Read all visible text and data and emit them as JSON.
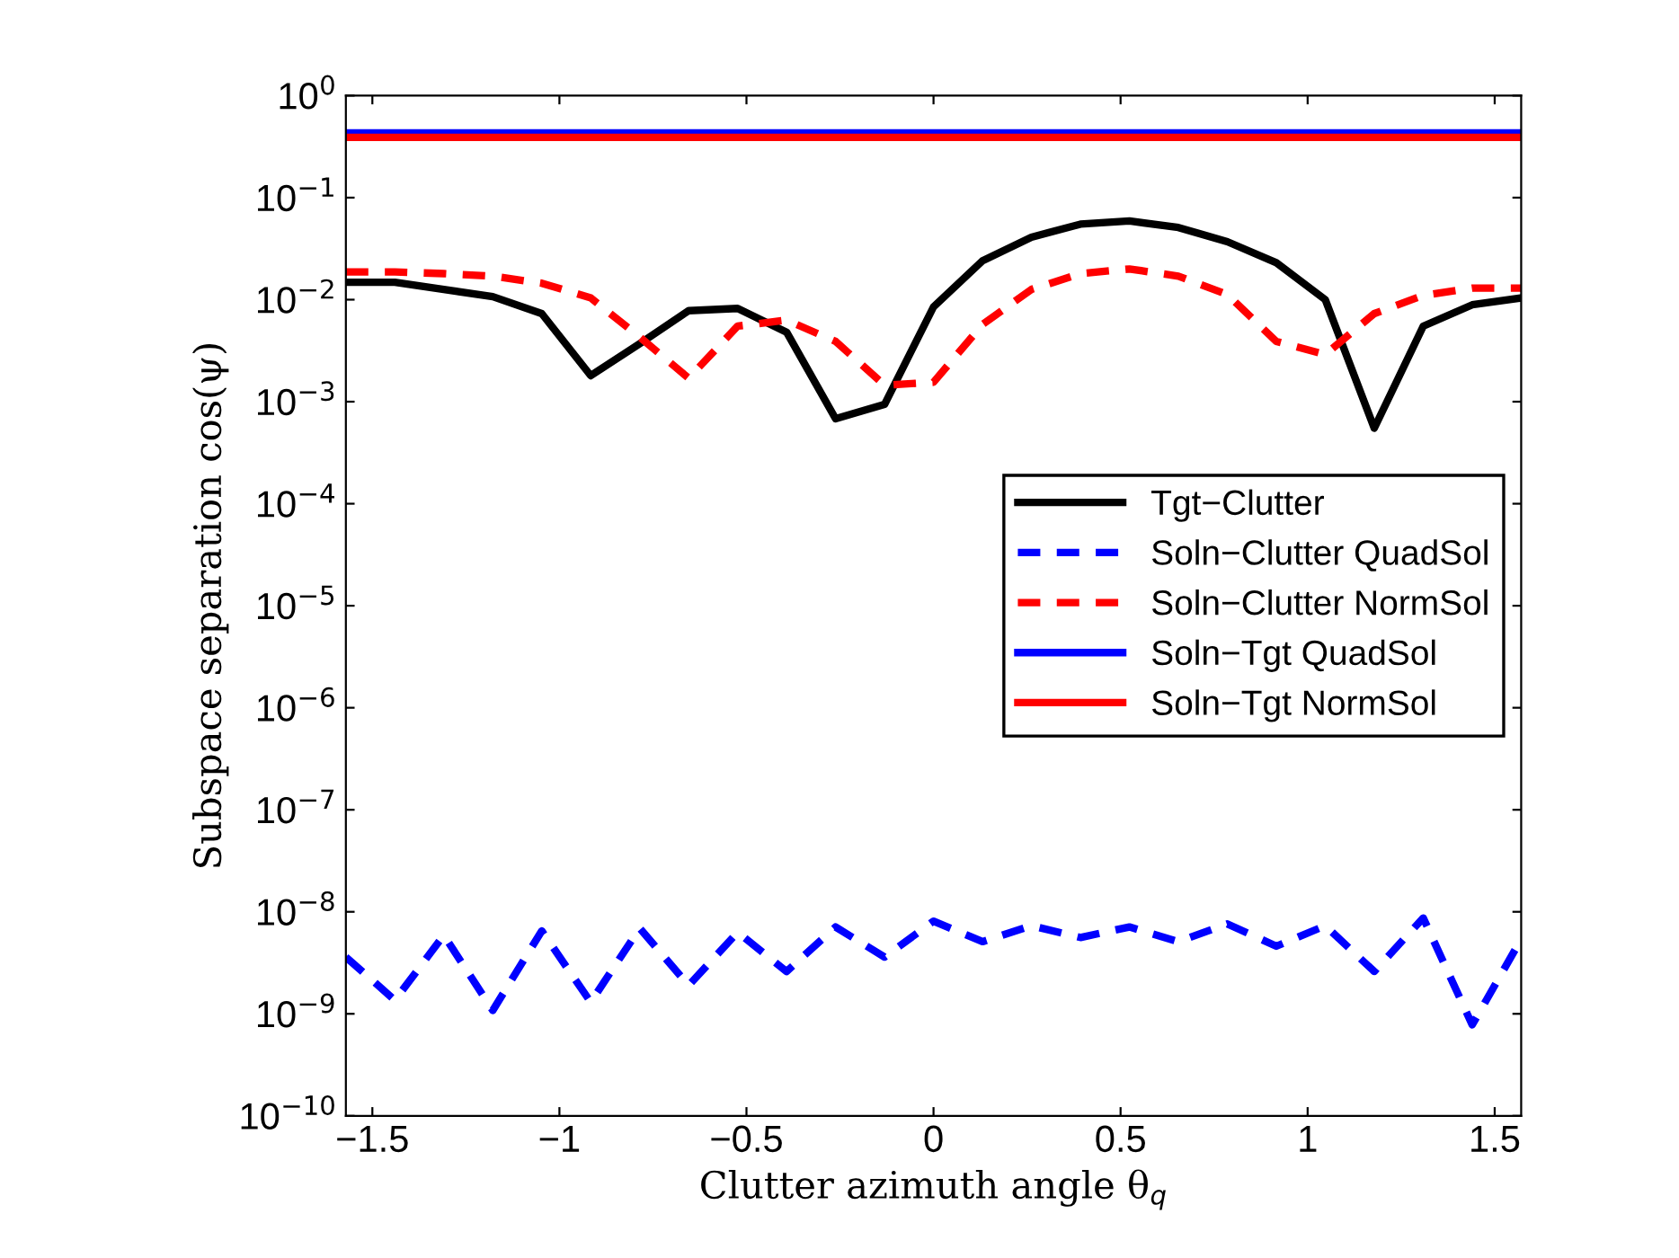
{
  "chart_data": {
    "type": "line",
    "xlabel": "Clutter azimuth angle θ$_{q}$",
    "ylabel": "Subspace separation cos(ψ)",
    "x": [
      -1.5708,
      -1.4399,
      -1.309,
      -1.1781,
      -1.0472,
      -0.9163,
      -0.7854,
      -0.6545,
      -0.5236,
      -0.3927,
      -0.2618,
      -0.1309,
      0.0,
      0.1309,
      0.2618,
      0.3927,
      0.5236,
      0.6545,
      0.7854,
      0.9163,
      1.0472,
      1.1781,
      1.309,
      1.4399,
      1.5708
    ],
    "series": [
      {
        "name": "Tgt−Clutter",
        "color": "#000000",
        "line_style": "solid",
        "values": [
          0.0148,
          0.0148,
          0.0126,
          0.0107,
          0.0073,
          0.0018,
          0.0037,
          0.0078,
          0.0082,
          0.0048,
          0.00068,
          0.00094,
          0.0085,
          0.024,
          0.041,
          0.055,
          0.059,
          0.051,
          0.037,
          0.023,
          0.01,
          0.00055,
          0.0055,
          0.0089,
          0.0104
        ]
      },
      {
        "name": "Soln−Clutter QuadSol",
        "color": "#0000ff",
        "line_style": "dashed",
        "values": [
          3.6e-09,
          1.36e-09,
          5.9e-09,
          1.08e-09,
          6.5e-09,
          1.3e-09,
          6.9e-09,
          1.9e-09,
          6.3e-09,
          2.6e-09,
          7.1e-09,
          3.6e-09,
          8.1e-09,
          5.1e-09,
          7.3e-09,
          5.6e-09,
          7.1e-09,
          5.1e-09,
          7.6e-09,
          4.6e-09,
          7.3e-09,
          2.6e-09,
          8.7e-09,
          7.8e-10,
          5.4e-09
        ]
      },
      {
        "name": "Soln−Clutter NormSol",
        "color": "#ff0000",
        "line_style": "dashed",
        "values": [
          0.0187,
          0.0187,
          0.018,
          0.017,
          0.0145,
          0.0104,
          0.0043,
          0.0017,
          0.0055,
          0.0063,
          0.0039,
          0.00145,
          0.00155,
          0.0057,
          0.0126,
          0.018,
          0.02,
          0.017,
          0.0112,
          0.0039,
          0.0029,
          0.0073,
          0.011,
          0.013,
          0.013
        ]
      },
      {
        "name": "Soln−Tgt QuadSol",
        "color": "#0000ff",
        "line_style": "solid",
        "values": [
          0.43,
          0.43,
          0.43,
          0.43,
          0.43,
          0.43,
          0.43,
          0.43,
          0.43,
          0.43,
          0.43,
          0.43,
          0.43,
          0.43,
          0.43,
          0.43,
          0.43,
          0.43,
          0.43,
          0.43,
          0.43,
          0.43,
          0.43,
          0.43,
          0.43
        ]
      },
      {
        "name": "Soln−Tgt NormSol",
        "color": "#ff0000",
        "line_style": "solid",
        "values": [
          0.39,
          0.39,
          0.39,
          0.39,
          0.39,
          0.39,
          0.39,
          0.39,
          0.39,
          0.39,
          0.39,
          0.39,
          0.39,
          0.39,
          0.39,
          0.39,
          0.39,
          0.39,
          0.39,
          0.39,
          0.39,
          0.39,
          0.39,
          0.39,
          0.39
        ]
      }
    ],
    "log": "y",
    "xlim": [
      -1.5708,
      1.5708
    ],
    "xticks": [
      {
        "value": -1.5,
        "label": "−1.5"
      },
      {
        "value": -1,
        "label": "−1"
      },
      {
        "value": -0.5,
        "label": "−0.5"
      },
      0,
      0.5,
      1,
      1.5
    ],
    "ylim": [
      1e-10,
      1
    ],
    "yticks": [
      {
        "value": 1e-10,
        "label": "10$^{−10}$"
      },
      {
        "value": 1e-09,
        "label": "10$^{−9}$"
      },
      {
        "value": 1e-08,
        "label": "10$^{−8}$"
      },
      {
        "value": 1e-07,
        "label": "10$^{−7}$"
      },
      {
        "value": 1e-06,
        "label": "10$^{−6}$"
      },
      {
        "value": 1e-05,
        "label": "10$^{−5}$"
      },
      {
        "value": 0.0001,
        "label": "10$^{−4}$"
      },
      {
        "value": 0.001,
        "label": "10$^{−3}$"
      },
      {
        "value": 0.01,
        "label": "10$^{−2}$"
      },
      {
        "value": 0.1,
        "label": "10$^{−1}$"
      },
      {
        "value": 1,
        "label": "10$^{0}$"
      }
    ],
    "grid": false,
    "legend": "center right",
    "marker": "none"
  }
}
